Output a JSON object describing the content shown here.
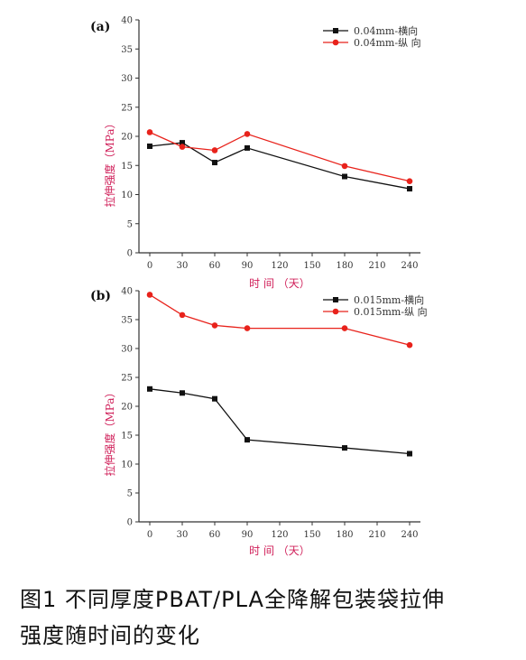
{
  "caption": {
    "line1": "图1  不同厚度PBAT/PLA全降解包装袋拉伸",
    "line2": "强度随时间的变化"
  },
  "colors": {
    "series_black": "#111111",
    "series_red": "#e8221b",
    "axis": "#333333"
  },
  "chart_data": [
    {
      "panel": "(a)",
      "type": "line",
      "xlabel": "时 间 （天）",
      "ylabel": "拉伸强度（MPa）",
      "xlim": [
        -10,
        250
      ],
      "ylim": [
        0,
        40
      ],
      "xticks": [
        0,
        30,
        60,
        90,
        120,
        150,
        180,
        210,
        240
      ],
      "yticks": [
        0,
        5,
        10,
        15,
        20,
        25,
        30,
        35,
        40
      ],
      "legend_position": "top-right",
      "series": [
        {
          "name": "0.04mm-横向",
          "color": "#111111",
          "marker": "square",
          "x": [
            0,
            30,
            60,
            90,
            180,
            240
          ],
          "y": [
            18.3,
            18.9,
            15.5,
            18.0,
            13.1,
            11.0
          ]
        },
        {
          "name": "0.04mm-纵 向",
          "color": "#e8221b",
          "marker": "circle",
          "x": [
            0,
            30,
            60,
            90,
            180,
            240
          ],
          "y": [
            20.7,
            18.2,
            17.6,
            20.4,
            14.9,
            12.3
          ]
        }
      ]
    },
    {
      "panel": "(b)",
      "type": "line",
      "xlabel": "时 间 （天）",
      "ylabel": "拉伸强度（MPa）",
      "xlim": [
        -10,
        250
      ],
      "ylim": [
        0,
        40
      ],
      "xticks": [
        0,
        30,
        60,
        90,
        120,
        150,
        180,
        210,
        240
      ],
      "yticks": [
        0,
        5,
        10,
        15,
        20,
        25,
        30,
        35,
        40
      ],
      "legend_position": "top-right",
      "series": [
        {
          "name": "0.015mm-横向",
          "color": "#111111",
          "marker": "square",
          "x": [
            0,
            30,
            60,
            90,
            180,
            240
          ],
          "y": [
            23.0,
            22.3,
            21.3,
            14.2,
            12.8,
            11.8
          ]
        },
        {
          "name": "0.015mm-纵 向",
          "color": "#e8221b",
          "marker": "circle",
          "x": [
            0,
            30,
            60,
            90,
            180,
            240
          ],
          "y": [
            39.3,
            35.8,
            34.0,
            33.5,
            33.5,
            30.6
          ]
        }
      ]
    }
  ]
}
